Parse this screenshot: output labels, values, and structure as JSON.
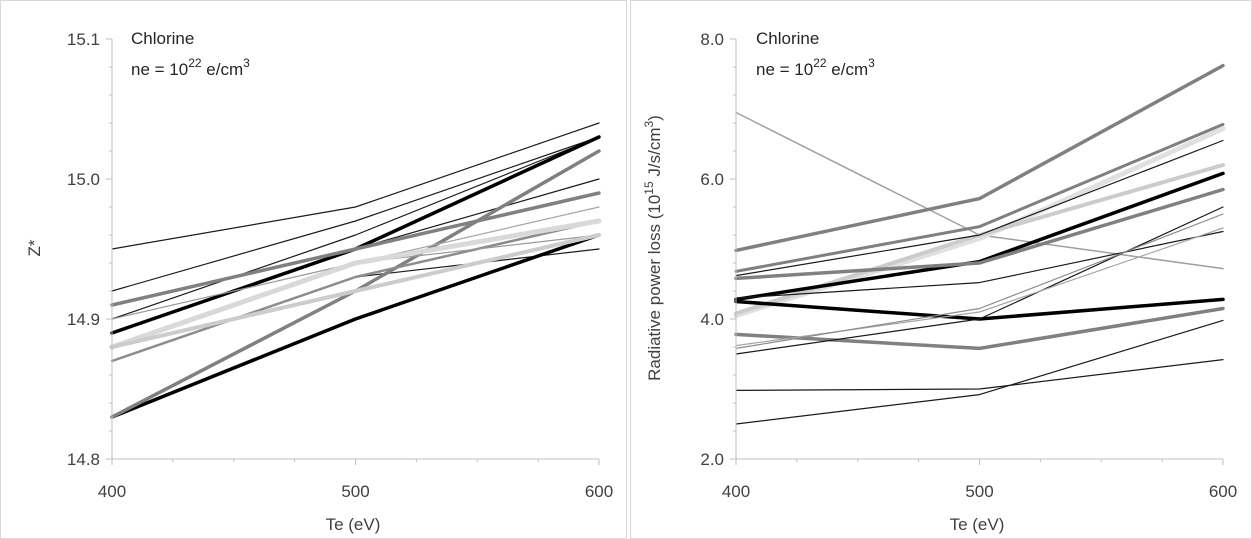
{
  "chart_data": [
    {
      "type": "line",
      "annotation": {
        "element": "Chlorine",
        "density_prefix": "ne = 10",
        "density_exp": "22",
        "density_unit_pre": " e/cm",
        "density_unit_exp": "3"
      },
      "xlabel": "Te (eV)",
      "ylabel": "Z*",
      "x": [
        400,
        500,
        600
      ],
      "xlim": [
        400,
        600
      ],
      "ylim": [
        14.8,
        15.1
      ],
      "x_ticks": [
        "400",
        "500",
        "600"
      ],
      "y_ticks": [
        "14.8",
        "14.9",
        "15.0",
        "15.1"
      ],
      "grid": false,
      "series": [
        {
          "values": [
            14.95,
            14.98,
            15.04
          ],
          "color": "#1a1a1a",
          "width": 1.2
        },
        {
          "values": [
            14.92,
            14.97,
            15.03
          ],
          "color": "#1a1a1a",
          "width": 1.2
        },
        {
          "values": [
            14.9,
            14.96,
            15.03
          ],
          "color": "#1a1a1a",
          "width": 1.2
        },
        {
          "values": [
            14.91,
            14.95,
            15.0
          ],
          "color": "#1a1a1a",
          "width": 1.2
        },
        {
          "values": [
            14.87,
            14.93,
            14.95
          ],
          "color": "#1a1a1a",
          "width": 1.2
        },
        {
          "values": [
            14.89,
            14.95,
            15.03
          ],
          "color": "#000000",
          "width": 3.5
        },
        {
          "values": [
            14.83,
            14.9,
            14.96
          ],
          "color": "#000000",
          "width": 3.5
        },
        {
          "values": [
            14.91,
            14.95,
            14.99
          ],
          "color": "#808080",
          "width": 3.5
        },
        {
          "values": [
            14.83,
            14.92,
            15.02
          ],
          "color": "#808080",
          "width": 3.5
        },
        {
          "values": [
            14.87,
            14.93,
            14.97
          ],
          "color": "#8c8c8c",
          "width": 2.5
        },
        {
          "values": [
            14.9,
            14.94,
            14.96
          ],
          "color": "#9a9a9a",
          "width": 1.2
        },
        {
          "values": [
            14.88,
            14.94,
            14.98
          ],
          "color": "#a6a6a6",
          "width": 1.2
        },
        {
          "values": [
            14.88,
            14.94,
            14.97
          ],
          "color": "#d9d9d9",
          "width": 5
        },
        {
          "values": [
            14.88,
            14.92,
            14.96
          ],
          "color": "#cccccc",
          "width": 4
        }
      ]
    },
    {
      "type": "line",
      "annotation": {
        "element": "Chlorine",
        "density_prefix": "ne = 10",
        "density_exp": "22",
        "density_unit_pre": " e/cm",
        "density_unit_exp": "3"
      },
      "xlabel": "Te (eV)",
      "ylabel_pre": "Radiative power loss (10",
      "ylabel_exp1": "15",
      "ylabel_mid": " J/s/cm",
      "ylabel_exp2": "3",
      "ylabel_post": ")",
      "x": [
        400,
        500,
        600
      ],
      "xlim": [
        400,
        600
      ],
      "ylim": [
        2.0,
        8.0
      ],
      "x_ticks": [
        "400",
        "500",
        "600"
      ],
      "y_ticks": [
        "2.0",
        "4.0",
        "6.0",
        "8.0"
      ],
      "grid": false,
      "series": [
        {
          "values": [
            6.95,
            5.2,
            4.72
          ],
          "color": "#a0a0a0",
          "width": 1.5
        },
        {
          "values": [
            4.98,
            5.72,
            7.62
          ],
          "color": "#808080",
          "width": 3.5
        },
        {
          "values": [
            4.68,
            5.32,
            6.78
          ],
          "color": "#808080",
          "width": 3
        },
        {
          "values": [
            4.05,
            5.15,
            6.72
          ],
          "color": "#e0e0e0",
          "width": 5
        },
        {
          "values": [
            4.08,
            5.2,
            6.2
          ],
          "color": "#cccccc",
          "width": 4
        },
        {
          "values": [
            4.28,
            4.82,
            6.08
          ],
          "color": "#000000",
          "width": 3.5
        },
        {
          "values": [
            4.58,
            4.8,
            5.85
          ],
          "color": "#808080",
          "width": 3.5
        },
        {
          "values": [
            4.25,
            4.0,
            4.28
          ],
          "color": "#000000",
          "width": 3.5
        },
        {
          "values": [
            3.78,
            3.58,
            4.15
          ],
          "color": "#808080",
          "width": 3.5
        },
        {
          "values": [
            4.62,
            5.2,
            6.55
          ],
          "color": "#1a1a1a",
          "width": 1.2
        },
        {
          "values": [
            4.3,
            4.52,
            5.25
          ],
          "color": "#1a1a1a",
          "width": 1.2
        },
        {
          "values": [
            3.5,
            4.0,
            5.6
          ],
          "color": "#1a1a1a",
          "width": 1.2
        },
        {
          "values": [
            3.62,
            4.1,
            5.3
          ],
          "color": "#a6a6a6",
          "width": 1.2
        },
        {
          "values": [
            3.58,
            4.15,
            5.5
          ],
          "color": "#8c8c8c",
          "width": 1.2
        },
        {
          "values": [
            2.98,
            3.0,
            3.42
          ],
          "color": "#1a1a1a",
          "width": 1.2
        },
        {
          "values": [
            2.5,
            2.92,
            3.98
          ],
          "color": "#1a1a1a",
          "width": 1.2
        }
      ]
    }
  ]
}
